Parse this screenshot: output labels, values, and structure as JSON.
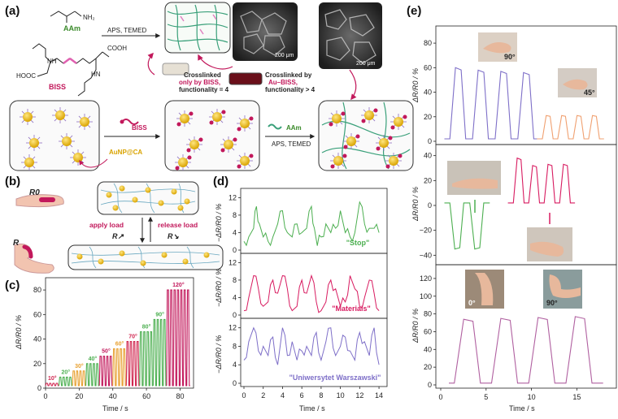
{
  "panel_a": {
    "label": "(a)",
    "aam": "AAm",
    "nh2": "NH₂",
    "bis": "BISS",
    "cooh": "COOH",
    "hooc": "HOOC",
    "nh": "NH",
    "hn": "HN",
    "aps": "APS, TEMED",
    "aps2": "APS, TEMED",
    "aam2": "AAm",
    "bis2": "BISS",
    "aunp": "AuNP@CA",
    "scale1": "200 μm",
    "scale2": "200 μm",
    "box1_l1": "Crosslinked",
    "box1_l2": "only by BISS,",
    "box1_l3": "functionality = 4",
    "box2_l1": "Crosslinked by",
    "box2_l2": "Au–BISS,",
    "box2_l3": "functionality > 4"
  },
  "panel_b": {
    "label": "(b)",
    "r0": "R0",
    "r": "R",
    "apply": "apply load",
    "release": "release load",
    "rup": "R↗",
    "rdown": "R↘"
  },
  "panel_c": {
    "label": "(c)",
    "ylabel": "ΔR/R0 / %",
    "xlabel": "Time / s",
    "angles": [
      "10°",
      "20°",
      "30°",
      "40°",
      "50°",
      "60°",
      "70°",
      "80°",
      "90°",
      "120°"
    ],
    "angle_colors": [
      "#d0264f",
      "#4caf50",
      "#e8a030",
      "#4caf50",
      "#c2185b",
      "#e8a030",
      "#d0264f",
      "#4caf50",
      "#4caf50",
      "#c2185b"
    ],
    "yticks": [
      "0",
      "20",
      "40",
      "60",
      "80"
    ],
    "xticks": [
      "0",
      "20",
      "40",
      "60",
      "80"
    ]
  },
  "panel_d": {
    "label": "(d)",
    "ylabel": "−ΔR/R0 / %",
    "xlabel": "Time / s",
    "words": [
      "\"Stop\"",
      "\"Materials\"",
      "\"Uniwersytet Warszawski\""
    ],
    "colors": [
      "#4caf50",
      "#d81b60",
      "#7e6fc8"
    ],
    "yticks1": [
      "0",
      "4",
      "8",
      "12"
    ],
    "yticks2": [
      "0",
      "4",
      "8",
      "12"
    ],
    "yticks3": [
      "0",
      "4",
      "8",
      "12"
    ],
    "xticks": [
      "0",
      "2",
      "4",
      "6",
      "8",
      "10",
      "12",
      "14"
    ]
  },
  "panel_e": {
    "label": "(e)",
    "ylabel": "ΔR/R0 / %",
    "xlabel": "Time / s",
    "angle1": "90°",
    "angle2": "45°",
    "angle3": "0°",
    "angle4": "90°",
    "yticks1": [
      "0",
      "20",
      "40",
      "60",
      "80"
    ],
    "yticks2": [
      "−40",
      "−20",
      "0",
      "20",
      "40"
    ],
    "yticks3": [
      "0",
      "20",
      "40",
      "60",
      "80",
      "100",
      "120"
    ],
    "xticks": [
      "0",
      "5",
      "10",
      "15"
    ],
    "colors": {
      "p1a": "#7e6fc8",
      "p1b": "#f0a070",
      "p2a": "#4caf50",
      "p2b": "#d81b60",
      "p3": "#b060a0"
    }
  },
  "chart_data": [
    {
      "type": "line",
      "title": "(c)",
      "xlabel": "Time / s",
      "ylabel": "ΔR/R0 / %",
      "xlim": [
        0,
        88
      ],
      "ylim": [
        0,
        90
      ],
      "annotations": [
        "10°",
        "20°",
        "30°",
        "40°",
        "50°",
        "60°",
        "70°",
        "80°",
        "90°",
        "120°"
      ],
      "segments": [
        {
          "t0": 0,
          "t1": 8,
          "peak": 4
        },
        {
          "t0": 8,
          "t1": 16,
          "peak": 9
        },
        {
          "t0": 16,
          "t1": 24,
          "peak": 14
        },
        {
          "t0": 24,
          "t1": 32,
          "peak": 20
        },
        {
          "t0": 32,
          "t1": 40,
          "peak": 26
        },
        {
          "t0": 40,
          "t1": 48,
          "peak": 32
        },
        {
          "t0": 48,
          "t1": 56,
          "peak": 38
        },
        {
          "t0": 56,
          "t1": 64,
          "peak": 46
        },
        {
          "t0": 64,
          "t1": 72,
          "peak": 56
        },
        {
          "t0": 72,
          "t1": 86,
          "peak": 80
        }
      ]
    },
    {
      "type": "line",
      "title": "(d)",
      "xlabel": "Time / s",
      "ylabel": "−ΔR/R0 / %",
      "xlim": [
        0,
        14.5
      ],
      "ylim": [
        0,
        13
      ],
      "series": [
        {
          "name": "\"Stop\"",
          "x": [
            0,
            0.5,
            1,
            1.3,
            1.6,
            2,
            2.5,
            3,
            3.5,
            4,
            4.5,
            5,
            5.5,
            6,
            6.5,
            7,
            7.3,
            7.6,
            8,
            8.5,
            9,
            9.5,
            10,
            10.5,
            11,
            11.5,
            12,
            12.5,
            13,
            13.5,
            14
          ],
          "values": [
            2,
            3,
            5,
            10,
            6,
            3,
            2,
            3,
            6,
            9,
            4,
            3,
            6,
            4,
            5,
            10,
            5,
            1,
            3,
            6,
            4,
            5,
            9,
            4,
            3,
            4,
            11,
            6,
            5,
            5,
            4
          ]
        },
        {
          "name": "\"Materials\"",
          "x": [
            0,
            0.5,
            1,
            1.5,
            2,
            2.5,
            3,
            3.5,
            4,
            4.5,
            5,
            5.5,
            6,
            6.5,
            7,
            7.5,
            8,
            8.5,
            9,
            9.5,
            10,
            10.5,
            11,
            11.5,
            12,
            12.5,
            13,
            13.5,
            14
          ],
          "values": [
            1,
            4,
            9,
            6,
            2,
            3,
            8,
            5,
            9,
            6,
            1,
            2,
            8,
            5,
            9,
            3,
            1,
            3,
            8,
            6,
            2,
            3,
            9,
            6,
            2,
            4,
            8,
            5,
            1
          ]
        },
        {
          "name": "\"Uniwersytet Warszawski\"",
          "x": [
            0,
            0.5,
            1,
            1.5,
            2,
            2.5,
            3,
            3.5,
            4,
            4.5,
            5,
            5.5,
            6,
            6.5,
            7,
            7.5,
            8,
            8.5,
            9,
            9.5,
            10,
            10.5,
            11,
            11.5,
            12,
            12.5,
            13,
            13.5,
            14
          ],
          "values": [
            5,
            9,
            12,
            7,
            8,
            6,
            10,
            4,
            12,
            6,
            9,
            5,
            7,
            8,
            6,
            11,
            5,
            9,
            12,
            6,
            8,
            10,
            7,
            5,
            11,
            9,
            6,
            12,
            4
          ]
        }
      ]
    },
    {
      "type": "line",
      "title": "(e)",
      "xlabel": "Time / s",
      "ylabel": "ΔR/R0 / %",
      "xlim": [
        0,
        19
      ],
      "panels": [
        {
          "ylim": [
            0,
            90
          ],
          "series": [
            {
              "name": "90°",
              "peaks": [
                60,
                58,
                57,
                56
              ],
              "period": 2.5,
              "t0": 1
            },
            {
              "name": "45°",
              "peaks": [
                21,
                21,
                21,
                21
              ],
              "period": 1.7,
              "t0": 11.2
            }
          ]
        },
        {
          "ylim": [
            -45,
            45
          ],
          "series": [
            {
              "name": "green",
              "peaks": [
                -35,
                -35
              ],
              "period": 2.2,
              "t0": 1
            },
            {
              "name": "pink",
              "peaks": [
                38,
                32,
                33,
                33
              ],
              "period": 1.7,
              "t0": 8
            }
          ]
        },
        {
          "ylim": [
            0,
            130
          ],
          "series": [
            {
              "name": "0° to 90°",
              "peaks": [
                74,
                75,
                76,
                77
              ],
              "period": 4.1,
              "t0": 1.5
            }
          ]
        }
      ]
    }
  ]
}
